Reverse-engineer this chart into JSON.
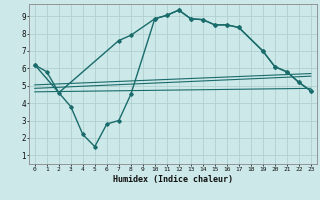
{
  "xlabel": "Humidex (Indice chaleur)",
  "background_color": "#cce8e8",
  "grid_color": "#b0d0d0",
  "line_color": "#1a6b6b",
  "xlim": [
    -0.5,
    23.5
  ],
  "ylim": [
    0.5,
    9.7
  ],
  "yticks": [
    1,
    2,
    3,
    4,
    5,
    6,
    7,
    8,
    9
  ],
  "xticks": [
    0,
    1,
    2,
    3,
    4,
    5,
    6,
    7,
    8,
    9,
    10,
    11,
    12,
    13,
    14,
    15,
    16,
    17,
    18,
    19,
    20,
    21,
    22,
    23
  ],
  "curve1_x": [
    0,
    1,
    2,
    7,
    8,
    10,
    11,
    12,
    13,
    14,
    15,
    16,
    17,
    19,
    20,
    21,
    22,
    23
  ],
  "curve1_y": [
    6.2,
    5.8,
    4.6,
    7.6,
    7.9,
    8.85,
    9.05,
    9.35,
    8.85,
    8.8,
    8.5,
    8.5,
    8.35,
    7.0,
    6.1,
    5.8,
    5.2,
    4.7
  ],
  "curve2_x": [
    0,
    3,
    4,
    5,
    6,
    7,
    8,
    10,
    11,
    12,
    13,
    14,
    15,
    16,
    17,
    19,
    20,
    21,
    22,
    23
  ],
  "curve2_y": [
    6.2,
    3.8,
    2.2,
    1.5,
    2.8,
    3.0,
    4.5,
    8.85,
    9.05,
    9.35,
    8.85,
    8.8,
    8.5,
    8.5,
    8.35,
    7.0,
    6.1,
    5.8,
    5.2,
    4.7
  ],
  "line3_x": [
    0,
    23
  ],
  "line3_y": [
    4.65,
    4.85
  ],
  "line4_x": [
    0,
    23
  ],
  "line4_y": [
    4.85,
    5.55
  ],
  "line5_x": [
    0,
    23
  ],
  "line5_y": [
    5.05,
    5.7
  ]
}
